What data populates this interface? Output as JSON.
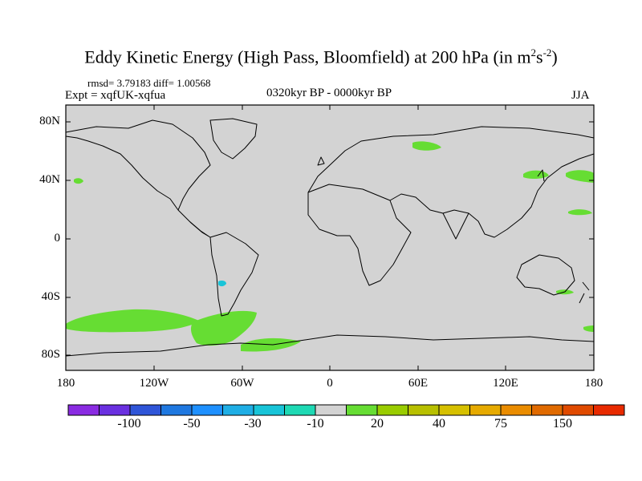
{
  "header": {
    "title_main": "Eddy Kinetic Energy (High Pass, Bloomfield) at 200 hPa (in m",
    "title_sup1": "2",
    "title_mid": "s",
    "title_sup2": "-2",
    "title_end": ")",
    "stats": "rmsd= 3.79183 diff= 1.00568",
    "expt": "Expt = xqfUK-xqfua",
    "period": "0320kyr BP - 0000kyr BP",
    "season": "JJA"
  },
  "map": {
    "background_color": "#d3d3d3",
    "coastline_color": "#000000",
    "lat_labels": [
      "80N",
      "40N",
      "0",
      "40S",
      "80S"
    ],
    "lon_labels": [
      "180",
      "120W",
      "60W",
      "0",
      "60E",
      "120E",
      "180"
    ]
  },
  "colorbar": {
    "colors": [
      "#8a2be2",
      "#6a30e0",
      "#2f55d8",
      "#1f78e0",
      "#1e90ff",
      "#1faee5",
      "#18c4d8",
      "#1ed9b4",
      "#d3d3d3",
      "#66dd33",
      "#99cc00",
      "#b8c000",
      "#d6c000",
      "#e6aa00",
      "#ea8c00",
      "#e06a00",
      "#e04a00",
      "#e82a00"
    ],
    "labels": [
      "-100",
      "-50",
      "-30",
      "-10",
      "20",
      "40",
      "75",
      "150"
    ]
  }
}
